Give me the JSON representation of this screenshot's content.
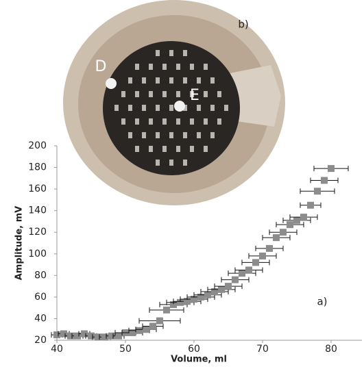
{
  "chart_data": {
    "type": "scatter",
    "x_label": "Volume,  ml",
    "y_label": "Amplitude, mV",
    "annotation": "a)",
    "xlim": [
      40,
      84.5
    ],
    "ylim": [
      20,
      200
    ],
    "xticks": [
      40,
      50,
      60,
      70,
      80
    ],
    "yticks": [
      20,
      40,
      60,
      80,
      100,
      120,
      140,
      160,
      180,
      200
    ],
    "series": [
      {
        "color": "#8c8c8c",
        "x": [
          40,
          41,
          42,
          43,
          44,
          45,
          46,
          47,
          48,
          49,
          50,
          51,
          52,
          53,
          54,
          55,
          56,
          57,
          58,
          59,
          60,
          61,
          62,
          63,
          64,
          65,
          66,
          67,
          68,
          69,
          70,
          71,
          72,
          73,
          74,
          75,
          76,
          77,
          78,
          79,
          80
        ],
        "values": [
          25,
          26,
          24,
          24,
          26,
          24,
          23,
          23,
          24,
          24,
          27,
          27,
          29,
          30,
          33,
          38,
          48,
          53,
          55,
          56,
          58,
          60,
          62,
          65,
          67,
          70,
          76,
          82,
          85,
          92,
          98,
          105,
          115,
          120,
          127,
          131,
          134,
          145,
          158,
          168,
          179
        ],
        "xerr": [
          0.8,
          0.8,
          0.8,
          0.8,
          0.8,
          0.8,
          0.8,
          0.8,
          0.8,
          0.8,
          1.5,
          1.5,
          1.5,
          1.5,
          1.5,
          3,
          2.5,
          2,
          2,
          2,
          2,
          2,
          2,
          2,
          2,
          2,
          2,
          2,
          2,
          2,
          2,
          2,
          2,
          2,
          2,
          2,
          2,
          1.5,
          2.5,
          2,
          2.5
        ]
      }
    ]
  },
  "photo": {
    "label": "b)",
    "points": [
      "D",
      "E"
    ]
  }
}
